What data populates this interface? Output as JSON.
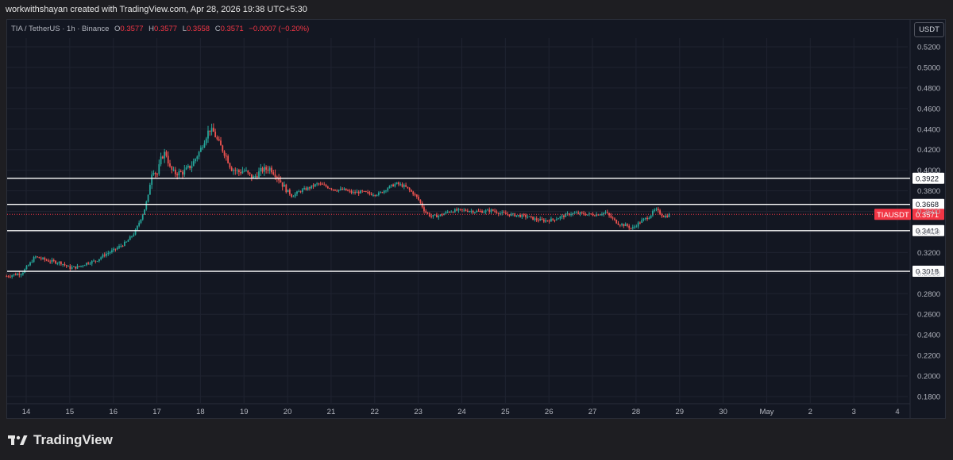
{
  "header": {
    "text": "workwithshayan created with TradingView.com, Apr 28, 2026 19:38 UTC+5:30"
  },
  "legend": {
    "symbol": "TIA / TetherUS · 1h · Binance",
    "o_label": "O",
    "o": "0.3577",
    "h_label": "H",
    "h": "0.3577",
    "l_label": "L",
    "l": "0.3558",
    "c_label": "C",
    "c": "0.3571",
    "change": "−0.0007 (−0.20%)"
  },
  "currency": "USDT",
  "brand": {
    "name": "TradingView"
  },
  "colors": {
    "up": "#26a69a",
    "down": "#ef5350",
    "background": "#131722",
    "price_tag": "#f23645",
    "level_line": "#ffffff"
  },
  "chart_data": {
    "type": "candlestick",
    "symbol": "TIAUSDT",
    "timeframe": "1h",
    "ylim": [
      0.17,
      0.535
    ],
    "y_ticks": [
      "0.5200",
      "0.5000",
      "0.4800",
      "0.4600",
      "0.4400",
      "0.4200",
      "0.4000",
      "0.3800",
      "0.3600",
      "0.3400",
      "0.3200",
      "0.3000",
      "0.2800",
      "0.2600",
      "0.2400",
      "0.2200",
      "0.2000",
      "0.1800"
    ],
    "x_ticks": [
      "14",
      "15",
      "16",
      "17",
      "18",
      "19",
      "20",
      "21",
      "22",
      "23",
      "24",
      "25",
      "26",
      "27",
      "28",
      "29",
      "30",
      "May",
      "2",
      "3",
      "4"
    ],
    "x_range_days": [
      13.55,
      34.45
    ],
    "last_price": 0.3571,
    "last_price_label": "0.3571",
    "last_price_tag": "TIAUSDT",
    "levels": [
      {
        "value": 0.3922,
        "label": "0.3922"
      },
      {
        "value": 0.3668,
        "label": "0.3668"
      },
      {
        "value": 0.3413,
        "label": "0.3413"
      },
      {
        "value": 0.3018,
        "label": "0.3018"
      }
    ],
    "price_path": [
      [
        13.55,
        0.297
      ],
      [
        13.9,
        0.3
      ],
      [
        14.1,
        0.31
      ],
      [
        14.2,
        0.316
      ],
      [
        14.5,
        0.312
      ],
      [
        14.8,
        0.31
      ],
      [
        15.0,
        0.305
      ],
      [
        15.2,
        0.306
      ],
      [
        15.4,
        0.31
      ],
      [
        15.6,
        0.312
      ],
      [
        15.8,
        0.318
      ],
      [
        16.0,
        0.322
      ],
      [
        16.3,
        0.33
      ],
      [
        16.5,
        0.34
      ],
      [
        16.6,
        0.35
      ],
      [
        16.7,
        0.36
      ],
      [
        16.8,
        0.375
      ],
      [
        16.85,
        0.39
      ],
      [
        16.9,
        0.402
      ],
      [
        17.0,
        0.395
      ],
      [
        17.1,
        0.412
      ],
      [
        17.2,
        0.418
      ],
      [
        17.3,
        0.402
      ],
      [
        17.4,
        0.397
      ],
      [
        17.6,
        0.398
      ],
      [
        17.8,
        0.405
      ],
      [
        18.0,
        0.42
      ],
      [
        18.2,
        0.44
      ],
      [
        18.3,
        0.437
      ],
      [
        18.4,
        0.428
      ],
      [
        18.6,
        0.413
      ],
      [
        18.7,
        0.402
      ],
      [
        18.9,
        0.398
      ],
      [
        19.0,
        0.4
      ],
      [
        19.2,
        0.392
      ],
      [
        19.4,
        0.4
      ],
      [
        19.6,
        0.402
      ],
      [
        19.75,
        0.395
      ],
      [
        19.9,
        0.385
      ],
      [
        20.1,
        0.375
      ],
      [
        20.3,
        0.38
      ],
      [
        20.5,
        0.383
      ],
      [
        20.7,
        0.387
      ],
      [
        20.9,
        0.384
      ],
      [
        21.1,
        0.381
      ],
      [
        21.3,
        0.381
      ],
      [
        21.5,
        0.378
      ],
      [
        21.7,
        0.379
      ],
      [
        21.9,
        0.377
      ],
      [
        22.1,
        0.377
      ],
      [
        22.3,
        0.383
      ],
      [
        22.5,
        0.387
      ],
      [
        22.7,
        0.384
      ],
      [
        22.9,
        0.377
      ],
      [
        23.0,
        0.372
      ],
      [
        23.15,
        0.36
      ],
      [
        23.3,
        0.355
      ],
      [
        23.5,
        0.356
      ],
      [
        23.7,
        0.36
      ],
      [
        23.9,
        0.361
      ],
      [
        24.1,
        0.361
      ],
      [
        24.3,
        0.36
      ],
      [
        24.5,
        0.36
      ],
      [
        24.7,
        0.361
      ],
      [
        24.9,
        0.358
      ],
      [
        25.1,
        0.357
      ],
      [
        25.3,
        0.356
      ],
      [
        25.5,
        0.355
      ],
      [
        25.7,
        0.352
      ],
      [
        25.9,
        0.351
      ],
      [
        26.1,
        0.352
      ],
      [
        26.3,
        0.355
      ],
      [
        26.5,
        0.358
      ],
      [
        26.7,
        0.358
      ],
      [
        26.9,
        0.357
      ],
      [
        27.1,
        0.357
      ],
      [
        27.3,
        0.359
      ],
      [
        27.45,
        0.353
      ],
      [
        27.6,
        0.348
      ],
      [
        27.8,
        0.346
      ],
      [
        27.9,
        0.343
      ],
      [
        28.1,
        0.35
      ],
      [
        28.3,
        0.355
      ],
      [
        28.45,
        0.362
      ],
      [
        28.55,
        0.358
      ],
      [
        28.65,
        0.355
      ],
      [
        28.8,
        0.357
      ]
    ]
  }
}
